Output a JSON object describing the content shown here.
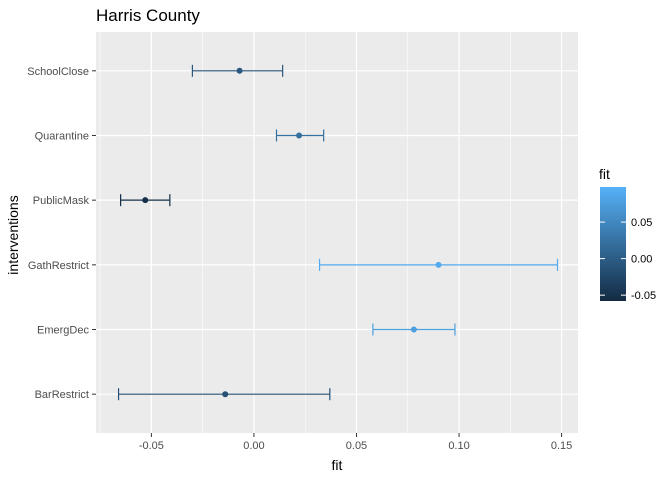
{
  "chart_data": {
    "type": "errorbar",
    "title": "Harris County",
    "xlabel": "fit",
    "ylabel": "interventions",
    "xlim": [
      -0.077,
      0.158
    ],
    "x_ticks": [
      -0.05,
      0.0,
      0.05,
      0.1,
      0.15
    ],
    "x_tick_labels": [
      "-0.05",
      "0.00",
      "0.05",
      "0.10",
      "0.15"
    ],
    "categories": [
      "BarRestrict",
      "EmergDec",
      "GathRestrict",
      "PublicMask",
      "Quarantine",
      "SchoolClose"
    ],
    "series": [
      {
        "points": [
          {
            "category": "BarRestrict",
            "fit": -0.014,
            "lower": -0.066,
            "upper": 0.037
          },
          {
            "category": "EmergDec",
            "fit": 0.078,
            "lower": 0.058,
            "upper": 0.098
          },
          {
            "category": "GathRestrict",
            "fit": 0.09,
            "lower": 0.032,
            "upper": 0.148
          },
          {
            "category": "PublicMask",
            "fit": -0.053,
            "lower": -0.065,
            "upper": -0.041
          },
          {
            "category": "Quarantine",
            "fit": 0.022,
            "lower": 0.011,
            "upper": 0.034
          },
          {
            "category": "SchoolClose",
            "fit": -0.007,
            "lower": -0.03,
            "upper": 0.014
          }
        ]
      }
    ],
    "grid": true,
    "panel_background": "#ebebeb",
    "grid_color": "#ffffff",
    "legend": {
      "title": "fit",
      "placement": "right",
      "type": "colorbar",
      "range": [
        -0.058,
        0.098
      ],
      "ticks": [
        0.05,
        0.0,
        -0.05
      ],
      "tick_labels": [
        "0.05",
        "0.00",
        "-0.05"
      ],
      "color_low": "#132b43",
      "color_high": "#56b1f7"
    }
  }
}
